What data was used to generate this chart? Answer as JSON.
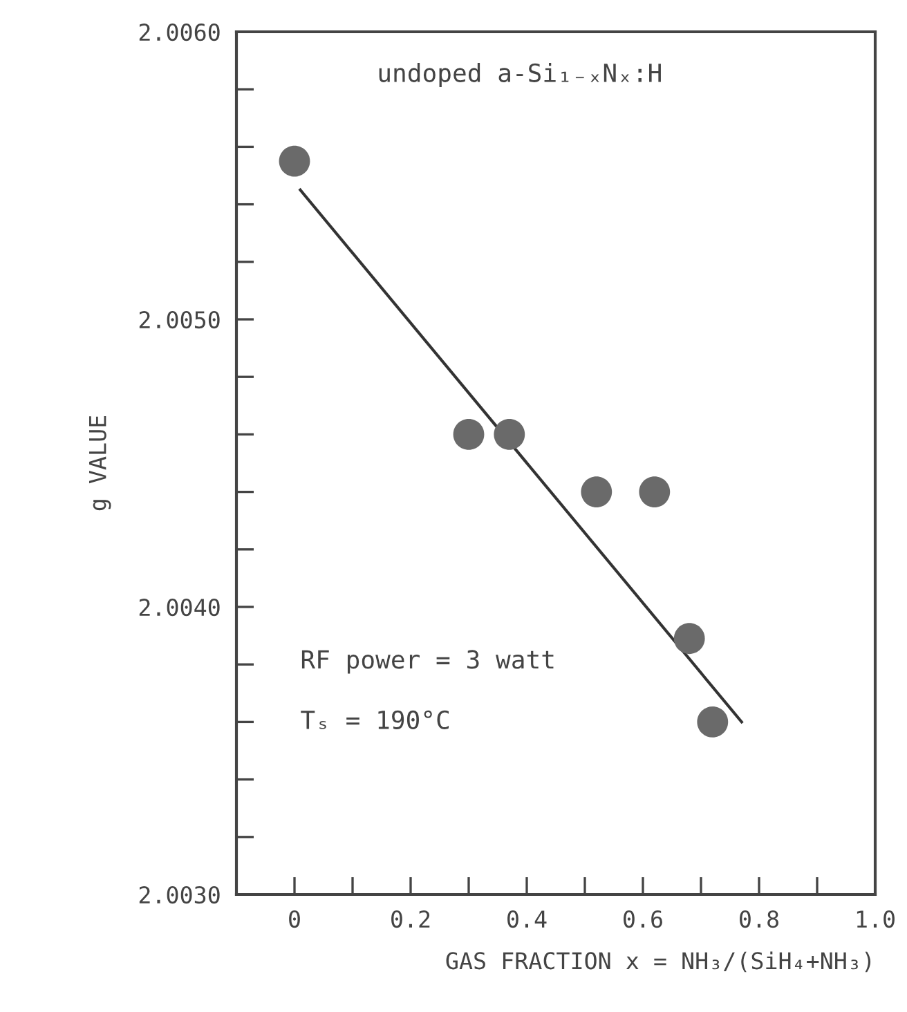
{
  "chart_data": {
    "type": "scatter",
    "xlabel": "GAS FRACTION x = NH₃/(SiH₄+NH₃)",
    "ylabel": "g VALUE",
    "annotations": [
      "undoped a-Si₁₋ₓNₓ:H",
      "RF power = 3 watt",
      "Tₛ = 190°C"
    ],
    "series": [
      {
        "color": "#6a6a6a",
        "marker": "circle",
        "x": [
          0,
          0.3,
          0.37,
          0.52,
          0.62,
          0.68,
          0.72
        ],
        "values": [
          2.00555,
          2.0046,
          2.0046,
          2.0044,
          2.0044,
          2.00389,
          2.0036
        ]
      },
      {
        "type": "line",
        "color": "#333333",
        "line_style": "solid",
        "x": [
          0.01,
          0.77
        ],
        "values": [
          2.00545,
          2.0036
        ]
      }
    ],
    "xlim": [
      -0.1,
      1.0
    ],
    "ylim": [
      2.003,
      2.006
    ],
    "xticks": [
      0,
      {
        "value": 0.1,
        "label": null
      },
      0.2,
      {
        "value": 0.3,
        "label": null
      },
      0.4,
      {
        "value": 0.5,
        "label": null
      },
      0.6,
      {
        "value": 0.7,
        "label": null
      },
      0.8,
      {
        "value": 0.9,
        "label": null
      },
      {
        "value": 1,
        "label": "1.0"
      }
    ],
    "yticks": [
      {
        "value": 2.003,
        "label": "2.0030"
      },
      {
        "value": 2.0032,
        "label": null
      },
      {
        "value": 2.0034,
        "label": null
      },
      {
        "value": 2.0036,
        "label": null
      },
      {
        "value": 2.0038,
        "label": null
      },
      {
        "value": 2.004,
        "label": "2.0040"
      },
      {
        "value": 2.0042,
        "label": null
      },
      {
        "value": 2.0044,
        "label": null
      },
      {
        "value": 2.0046,
        "label": null
      },
      {
        "value": 2.0048,
        "label": null
      },
      {
        "value": 2.005,
        "label": "2.0050"
      },
      {
        "value": 2.0052,
        "label": null
      },
      {
        "value": 2.0054,
        "label": null
      },
      {
        "value": 2.0056,
        "label": null
      },
      {
        "value": 2.0058,
        "label": null
      },
      {
        "value": 2.006,
        "label": "2.0060"
      }
    ],
    "grid": false
  }
}
